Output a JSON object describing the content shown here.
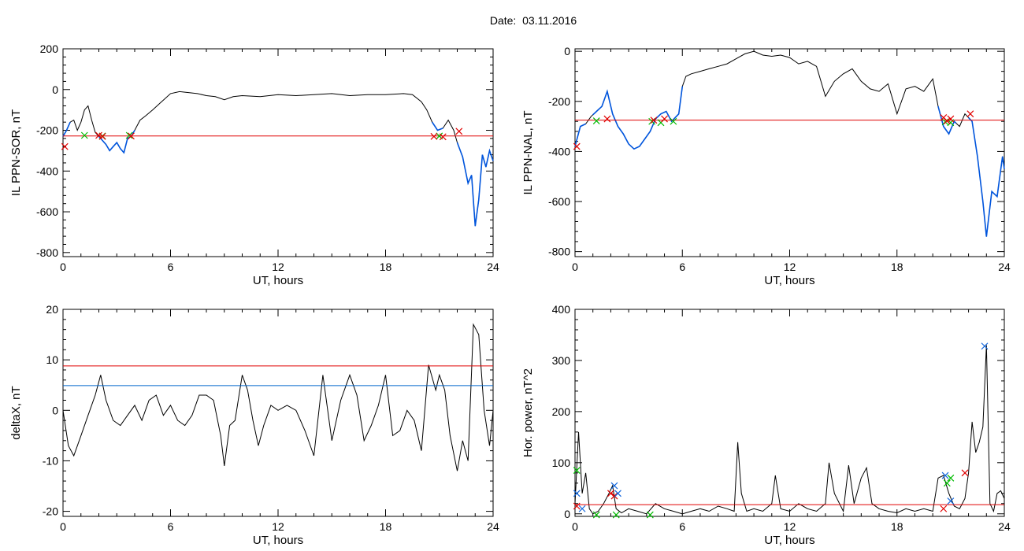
{
  "header": {
    "date_label": "Date:",
    "date_value": "03.11.2016"
  },
  "colors": {
    "trace": "#000000",
    "threshold": "#e00000",
    "threshold2": "#0066cc",
    "highlight": "#0055dd",
    "marker_red": "#e00000",
    "marker_green": "#00bb00",
    "marker_blue": "#1166dd"
  },
  "chart_data": [
    {
      "type": "line",
      "xlabel": "UT, hours",
      "ylabel": "IL PPN-SOR, nT",
      "xlim": [
        0,
        24
      ],
      "ylim": [
        -820,
        200
      ],
      "xticks": [
        0,
        6,
        12,
        18,
        24
      ],
      "yticks": [
        -800,
        -600,
        -400,
        -200,
        0,
        200
      ],
      "series": [
        {
          "role": "trace",
          "x": [
            0,
            0.2,
            0.4,
            0.6,
            0.8,
            1.0,
            1.2,
            1.4,
            1.6,
            1.8,
            2.0,
            2.2,
            2.4,
            2.6,
            2.8,
            3.0,
            3.2,
            3.4,
            3.6,
            3.8,
            4.0,
            4.3,
            4.6,
            5.0,
            5.5,
            6.0,
            6.5,
            7.0,
            7.5,
            8.0,
            8.5,
            9.0,
            9.5,
            10,
            11,
            12,
            13,
            14,
            15,
            16,
            17,
            18,
            19,
            19.5,
            20,
            20.3,
            20.6,
            20.9,
            21.2,
            21.5,
            21.8,
            22.0,
            22.3,
            22.6,
            22.8,
            23.0,
            23.2,
            23.4,
            23.6,
            23.8,
            24
          ],
          "y": [
            -230,
            -200,
            -160,
            -150,
            -200,
            -160,
            -100,
            -80,
            -150,
            -210,
            -230,
            -250,
            -270,
            -300,
            -280,
            -260,
            -290,
            -310,
            -240,
            -230,
            -200,
            -150,
            -130,
            -100,
            -60,
            -20,
            -10,
            -15,
            -20,
            -30,
            -35,
            -50,
            -35,
            -30,
            -35,
            -25,
            -30,
            -25,
            -20,
            -30,
            -25,
            -25,
            -20,
            -25,
            -60,
            -100,
            -160,
            -200,
            -190,
            -150,
            -200,
            -260,
            -330,
            -460,
            -420,
            -670,
            -540,
            -320,
            -380,
            -300,
            -350
          ]
        },
        {
          "role": "threshold",
          "value": -228
        }
      ],
      "highlight_segments": [
        [
          0,
          0.4
        ],
        [
          2.0,
          4.0
        ],
        [
          20.6,
          21.2
        ],
        [
          22.0,
          24
        ]
      ],
      "markers": [
        {
          "color": "green",
          "x": [
            1.2,
            2.2,
            3.7,
            21.0
          ],
          "y": [
            -225,
            -228,
            -225,
            -228
          ]
        },
        {
          "color": "red",
          "x": [
            0.1,
            2.0,
            2.2,
            3.8,
            20.7,
            21.2,
            22.1
          ],
          "y": [
            -280,
            -225,
            -230,
            -228,
            -230,
            -232,
            -205
          ]
        }
      ]
    },
    {
      "type": "line",
      "xlabel": "UT, hours",
      "ylabel": "IL PPN-NAL, nT",
      "xlim": [
        0,
        24
      ],
      "ylim": [
        -820,
        10
      ],
      "xticks": [
        0,
        6,
        12,
        18,
        24
      ],
      "yticks": [
        -800,
        -600,
        -400,
        -200,
        0
      ],
      "series": [
        {
          "role": "trace",
          "x": [
            0,
            0.3,
            0.6,
            0.9,
            1.2,
            1.5,
            1.8,
            2.1,
            2.4,
            2.7,
            3.0,
            3.3,
            3.6,
            3.9,
            4.2,
            4.5,
            4.8,
            5.1,
            5.4,
            5.8,
            6.0,
            6.2,
            6.5,
            7.0,
            7.5,
            8.0,
            8.5,
            9.0,
            9.5,
            10,
            10.5,
            11,
            11.5,
            12,
            12.5,
            13,
            13.5,
            14,
            14.5,
            15,
            15.5,
            16,
            16.5,
            17,
            17.5,
            18,
            18.5,
            19,
            19.5,
            20,
            20.3,
            20.6,
            20.9,
            21.2,
            21.5,
            21.8,
            22.2,
            22.5,
            22.8,
            23.0,
            23.3,
            23.6,
            23.9,
            24
          ],
          "y": [
            -380,
            -300,
            -290,
            -260,
            -240,
            -220,
            -160,
            -250,
            -300,
            -330,
            -370,
            -390,
            -380,
            -350,
            -320,
            -270,
            -250,
            -240,
            -280,
            -250,
            -140,
            -100,
            -90,
            -80,
            -70,
            -60,
            -50,
            -30,
            -10,
            0,
            -15,
            -20,
            -15,
            -25,
            -50,
            -40,
            -60,
            -180,
            -120,
            -90,
            -70,
            -120,
            -150,
            -160,
            -130,
            -250,
            -150,
            -140,
            -160,
            -110,
            -220,
            -300,
            -330,
            -280,
            -300,
            -250,
            -280,
            -420,
            -600,
            -740,
            -560,
            -580,
            -420,
            -470
          ]
        },
        {
          "role": "threshold",
          "value": -275
        }
      ],
      "highlight_segments": [
        [
          0,
          0.6
        ],
        [
          1.0,
          6.0
        ],
        [
          20.3,
          21.3
        ],
        [
          22.0,
          24
        ]
      ],
      "markers": [
        {
          "color": "green",
          "x": [
            1.2,
            4.3,
            4.8,
            5.5,
            20.7,
            21.0
          ],
          "y": [
            -278,
            -280,
            -285,
            -280,
            -282,
            -285
          ]
        },
        {
          "color": "red",
          "x": [
            0.1,
            1.8,
            4.4,
            5.0,
            20.6,
            20.8,
            21.0,
            22.1
          ],
          "y": [
            -380,
            -270,
            -275,
            -270,
            -265,
            -278,
            -270,
            -250
          ]
        }
      ]
    },
    {
      "type": "line",
      "xlabel": "UT, hours",
      "ylabel": "deltaX, nT",
      "xlim": [
        0,
        24
      ],
      "ylim": [
        -21,
        20
      ],
      "xticks": [
        0,
        6,
        12,
        18,
        24
      ],
      "yticks": [
        -20,
        -10,
        0,
        10,
        20
      ],
      "series": [
        {
          "role": "trace",
          "x": [
            0,
            0.3,
            0.6,
            1.0,
            1.4,
            1.8,
            2.1,
            2.4,
            2.8,
            3.2,
            3.6,
            4.0,
            4.4,
            4.8,
            5.2,
            5.6,
            6.0,
            6.4,
            6.8,
            7.2,
            7.6,
            8.0,
            8.4,
            8.8,
            9.0,
            9.3,
            9.6,
            10.0,
            10.3,
            10.6,
            10.9,
            11.2,
            11.6,
            12.0,
            12.5,
            13.0,
            13.5,
            14.0,
            14.5,
            15.0,
            15.5,
            16.0,
            16.4,
            16.8,
            17.2,
            17.6,
            18.0,
            18.4,
            18.8,
            19.2,
            19.6,
            20.0,
            20.4,
            20.8,
            21.0,
            21.3,
            21.6,
            22.0,
            22.3,
            22.6,
            22.9,
            23.2,
            23.5,
            23.8,
            24
          ],
          "y": [
            0,
            -7,
            -9,
            -5,
            -1,
            3,
            7,
            2,
            -2,
            -3,
            -1,
            1,
            -2,
            2,
            3,
            -1,
            1,
            -2,
            -3,
            -1,
            3,
            3,
            2,
            -5,
            -11,
            -3,
            -2,
            7,
            4,
            -2,
            -7,
            -3,
            1,
            0,
            1,
            0,
            -4,
            -9,
            7,
            -6,
            2,
            7,
            3,
            -6,
            -3,
            1,
            7,
            -5,
            -4,
            0,
            -2,
            -8,
            9,
            4,
            7,
            4,
            -5,
            -12,
            -6,
            -10,
            17,
            15,
            0,
            -7,
            0
          ]
        },
        {
          "role": "threshold",
          "value": 8.8
        },
        {
          "role": "threshold2",
          "value": 4.9
        }
      ]
    },
    {
      "type": "line",
      "xlabel": "UT, hours",
      "ylabel": "Hor. power, nT^2",
      "xlim": [
        0,
        24
      ],
      "ylim": [
        -5,
        400
      ],
      "xticks": [
        0,
        6,
        12,
        18,
        24
      ],
      "yticks": [
        0,
        100,
        200,
        300,
        400
      ],
      "series": [
        {
          "role": "trace",
          "x": [
            0,
            0.2,
            0.4,
            0.6,
            0.8,
            1.0,
            1.3,
            1.6,
            1.9,
            2.1,
            2.3,
            2.6,
            3.0,
            3.5,
            4.0,
            4.5,
            5.0,
            5.5,
            6.0,
            6.5,
            7.0,
            7.5,
            8.0,
            8.5,
            8.9,
            9.1,
            9.3,
            9.6,
            10.0,
            10.5,
            11.0,
            11.2,
            11.5,
            12.0,
            12.5,
            13.0,
            13.5,
            14.0,
            14.2,
            14.5,
            15.0,
            15.3,
            15.6,
            16.0,
            16.3,
            16.6,
            17.0,
            17.5,
            18.0,
            18.5,
            19.0,
            19.5,
            20.0,
            20.3,
            20.6,
            20.9,
            21.2,
            21.5,
            21.8,
            22.0,
            22.2,
            22.4,
            22.6,
            22.8,
            23.0,
            23.2,
            23.4,
            23.6,
            23.8,
            24
          ],
          "y": [
            20,
            160,
            40,
            80,
            10,
            0,
            5,
            20,
            40,
            55,
            10,
            2,
            10,
            5,
            0,
            20,
            10,
            5,
            0,
            5,
            10,
            5,
            15,
            10,
            5,
            140,
            40,
            5,
            10,
            5,
            20,
            75,
            10,
            5,
            20,
            10,
            5,
            20,
            100,
            40,
            5,
            95,
            20,
            70,
            90,
            20,
            10,
            5,
            2,
            10,
            5,
            10,
            5,
            70,
            75,
            40,
            15,
            10,
            30,
            80,
            180,
            120,
            140,
            170,
            330,
            20,
            5,
            40,
            45,
            30
          ]
        },
        {
          "role": "threshold",
          "value": 18
        }
      ],
      "markers": [
        {
          "color": "green",
          "x": [
            0.1,
            1.2,
            2.3,
            4.2,
            20.8,
            21.0
          ],
          "y": [
            85,
            -2,
            -2,
            -2,
            60,
            70
          ]
        },
        {
          "color": "red",
          "x": [
            0.1,
            2.0,
            2.2,
            20.6,
            21.8
          ],
          "y": [
            15,
            40,
            35,
            10,
            80
          ]
        },
        {
          "color": "blue",
          "x": [
            0.1,
            0.4,
            2.2,
            2.4,
            20.7,
            21.0,
            22.9
          ],
          "y": [
            40,
            10,
            55,
            40,
            75,
            25,
            328
          ]
        }
      ]
    }
  ]
}
